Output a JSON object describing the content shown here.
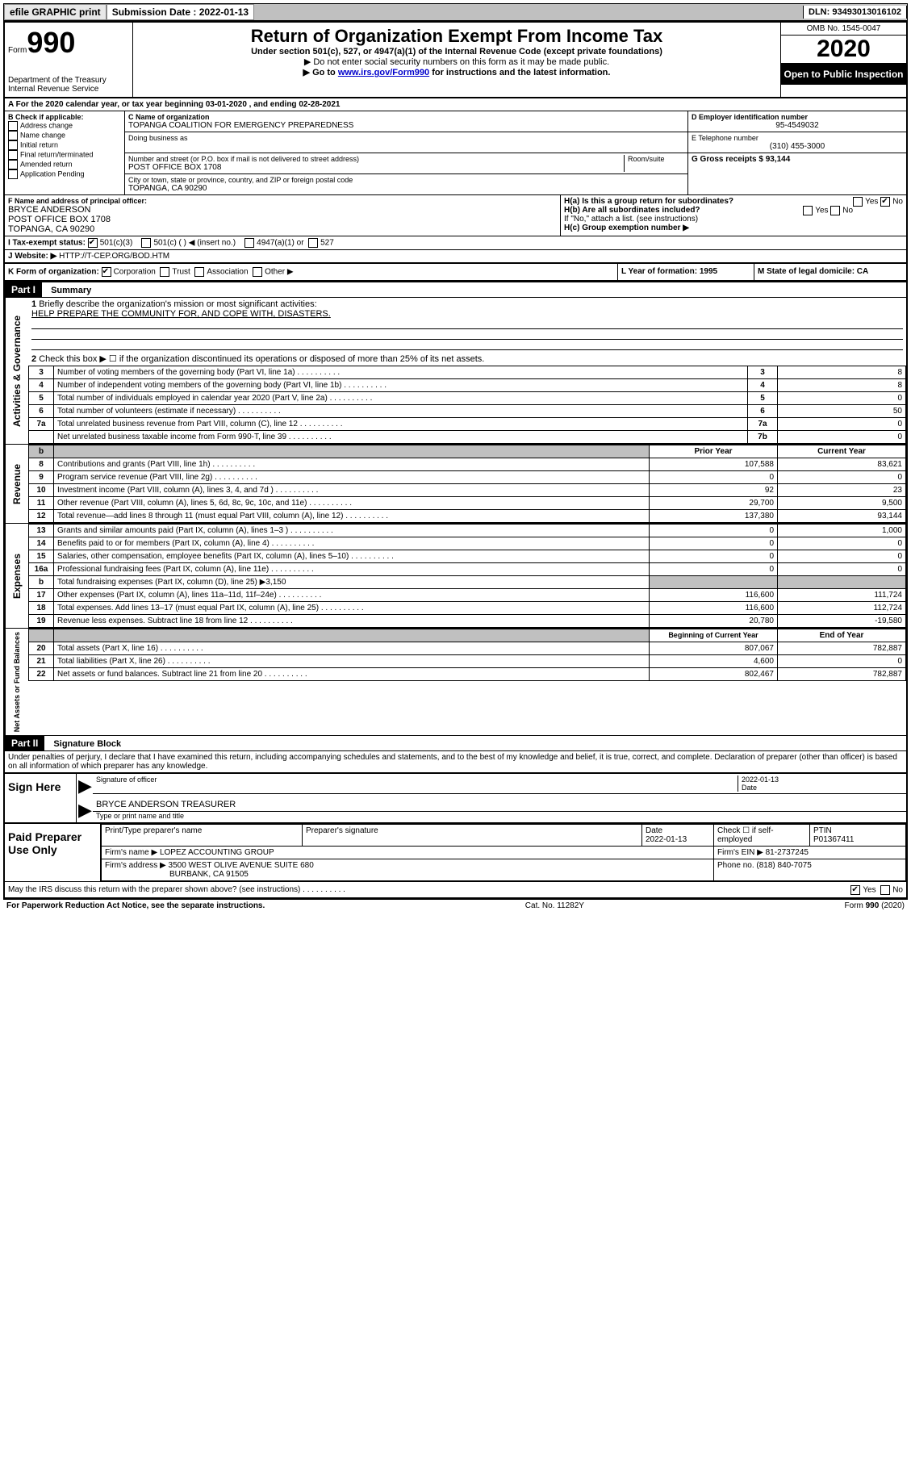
{
  "topbar": {
    "efile": "efile GRAPHIC print",
    "submission_label": "Submission Date : 2022-01-13",
    "dln_label": "DLN: 93493013016102"
  },
  "header": {
    "form_word": "Form",
    "form_number": "990",
    "dept": "Department of the Treasury",
    "irs": "Internal Revenue Service",
    "title": "Return of Organization Exempt From Income Tax",
    "sub1": "Under section 501(c), 527, or 4947(a)(1) of the Internal Revenue Code (except private foundations)",
    "sub2": "▶ Do not enter social security numbers on this form as it may be made public.",
    "sub3_pre": "▶ Go to ",
    "sub3_link": "www.irs.gov/Form990",
    "sub3_post": " for instructions and the latest information.",
    "omb": "OMB No. 1545-0047",
    "year": "2020",
    "open": "Open to Public Inspection"
  },
  "sectionA": "A For the 2020 calendar year, or tax year beginning 03-01-2020    , and ending 02-28-2021",
  "boxB": {
    "title": "B Check if applicable:",
    "opts": [
      "Address change",
      "Name change",
      "Initial return",
      "Final return/terminated",
      "Amended return",
      "Application Pending"
    ]
  },
  "boxC": {
    "label": "C Name of organization",
    "name": "TOPANGA COALITION FOR EMERGENCY PREPAREDNESS",
    "dba": "Doing business as",
    "street_label": "Number and street (or P.O. box if mail is not delivered to street address)",
    "room": "Room/suite",
    "street": "POST OFFICE BOX 1708",
    "city_label": "City or town, state or province, country, and ZIP or foreign postal code",
    "city": "TOPANGA, CA  90290"
  },
  "boxD": {
    "label": "D Employer identification number",
    "val": "95-4549032"
  },
  "boxE": {
    "label": "E Telephone number",
    "val": "(310) 455-3000"
  },
  "boxG": {
    "label": "G Gross receipts $ 93,144"
  },
  "boxF": {
    "label": "F  Name and address of principal officer:",
    "l1": "BRYCE ANDERSON",
    "l2": "POST OFFICE BOX 1708",
    "l3": "TOPANGA, CA  90290"
  },
  "boxH": {
    "a": "H(a)  Is this a group return for subordinates?",
    "b": "H(b)  Are all subordinates included?",
    "note": "If \"No,\" attach a list. (see instructions)",
    "c": "H(c)  Group exemption number ▶",
    "yes": "Yes",
    "no": "No"
  },
  "boxI": {
    "label": "I     Tax-exempt status:",
    "o1": "501(c)(3)",
    "o2": "501(c) (   ) ◀ (insert no.)",
    "o3": "4947(a)(1) or",
    "o4": "527"
  },
  "boxJ": {
    "label": "J     Website: ▶",
    "val": "  HTTP://T-CEP.ORG/BOD.HTM"
  },
  "boxK": {
    "label": "K Form of organization:",
    "o1": "Corporation",
    "o2": "Trust",
    "o3": "Association",
    "o4": "Other ▶"
  },
  "boxL": {
    "label": "L Year of formation: 1995"
  },
  "boxM": {
    "label": "M State of legal domicile: CA"
  },
  "part1": {
    "bar": "Part I",
    "title": "Summary"
  },
  "summary": {
    "q1": "Briefly describe the organization's mission or most significant activities:",
    "q1v": "HELP PREPARE THE COMMUNITY FOR, AND COPE WITH, DISASTERS.",
    "q2": "Check this box ▶ ☐  if the organization discontinued its operations or disposed of more than 25% of its net assets.",
    "rows_top": [
      {
        "n": "3",
        "t": "Number of voting members of the governing body (Part VI, line 1a)",
        "b": "3",
        "v": "8"
      },
      {
        "n": "4",
        "t": "Number of independent voting members of the governing body (Part VI, line 1b)",
        "b": "4",
        "v": "8"
      },
      {
        "n": "5",
        "t": "Total number of individuals employed in calendar year 2020 (Part V, line 2a)",
        "b": "5",
        "v": "0"
      },
      {
        "n": "6",
        "t": "Total number of volunteers (estimate if necessary)",
        "b": "6",
        "v": "50"
      },
      {
        "n": "7a",
        "t": "Total unrelated business revenue from Part VIII, column (C), line 12",
        "b": "7a",
        "v": "0"
      },
      {
        "n": "",
        "t": "Net unrelated business taxable income from Form 990-T, line 39",
        "b": "7b",
        "v": "0"
      }
    ],
    "col_prior": "Prior Year",
    "col_current": "Current Year",
    "rev": [
      {
        "n": "8",
        "t": "Contributions and grants (Part VIII, line 1h)",
        "p": "107,588",
        "c": "83,621"
      },
      {
        "n": "9",
        "t": "Program service revenue (Part VIII, line 2g)",
        "p": "0",
        "c": "0"
      },
      {
        "n": "10",
        "t": "Investment income (Part VIII, column (A), lines 3, 4, and 7d )",
        "p": "92",
        "c": "23"
      },
      {
        "n": "11",
        "t": "Other revenue (Part VIII, column (A), lines 5, 6d, 8c, 9c, 10c, and 11e)",
        "p": "29,700",
        "c": "9,500"
      },
      {
        "n": "12",
        "t": "Total revenue—add lines 8 through 11 (must equal Part VIII, column (A), line 12)",
        "p": "137,380",
        "c": "93,144"
      }
    ],
    "exp": [
      {
        "n": "13",
        "t": "Grants and similar amounts paid (Part IX, column (A), lines 1–3 )",
        "p": "0",
        "c": "1,000"
      },
      {
        "n": "14",
        "t": "Benefits paid to or for members (Part IX, column (A), line 4)",
        "p": "0",
        "c": "0"
      },
      {
        "n": "15",
        "t": "Salaries, other compensation, employee benefits (Part IX, column (A), lines 5–10)",
        "p": "0",
        "c": "0"
      },
      {
        "n": "16a",
        "t": "Professional fundraising fees (Part IX, column (A), line 11e)",
        "p": "0",
        "c": "0"
      },
      {
        "n": "b",
        "t": "Total fundraising expenses (Part IX, column (D), line 25) ▶3,150",
        "p": "",
        "c": ""
      },
      {
        "n": "17",
        "t": "Other expenses (Part IX, column (A), lines 11a–11d, 11f–24e)",
        "p": "116,600",
        "c": "111,724"
      },
      {
        "n": "18",
        "t": "Total expenses. Add lines 13–17 (must equal Part IX, column (A), line 25)",
        "p": "116,600",
        "c": "112,724"
      },
      {
        "n": "19",
        "t": "Revenue less expenses. Subtract line 18 from line 12",
        "p": "20,780",
        "c": "-19,580"
      }
    ],
    "col_begin": "Beginning of Current Year",
    "col_end": "End of Year",
    "net": [
      {
        "n": "20",
        "t": "Total assets (Part X, line 16)",
        "p": "807,067",
        "c": "782,887"
      },
      {
        "n": "21",
        "t": "Total liabilities (Part X, line 26)",
        "p": "4,600",
        "c": "0"
      },
      {
        "n": "22",
        "t": "Net assets or fund balances. Subtract line 21 from line 20",
        "p": "802,467",
        "c": "782,887"
      }
    ],
    "side_labels": {
      "gov": "Activities & Governance",
      "rev": "Revenue",
      "exp": "Expenses",
      "net": "Net Assets or Fund Balances"
    }
  },
  "part2": {
    "bar": "Part II",
    "title": "Signature Block"
  },
  "sig": {
    "perjury": "Under penalties of perjury, I declare that I have examined this return, including accompanying schedules and statements, and to the best of my knowledge and belief, it is true, correct, and complete. Declaration of preparer (other than officer) is based on all information of which preparer has any knowledge.",
    "sign_here": "Sign Here",
    "sig_officer": "Signature of officer",
    "date_label": "Date",
    "sig_date": "2022-01-13",
    "name_title": "BRYCE ANDERSON  TREASURER",
    "type_name": "Type or print name and title",
    "paid": "Paid Preparer Use Only",
    "col_prep_name": "Print/Type preparer's name",
    "col_prep_sig": "Preparer's signature",
    "col_date": "Date",
    "prep_date": "2022-01-13",
    "check_self": "Check ☐ if self-employed",
    "ptin_label": "PTIN",
    "ptin": "P01367411",
    "firm_name_label": "Firm's name     ▶",
    "firm_name": "LOPEZ ACCOUNTING GROUP",
    "firm_ein_label": "Firm's EIN ▶",
    "firm_ein": "81-2737245",
    "firm_addr_label": "Firm's address ▶",
    "firm_addr1": "3500 WEST OLIVE AVENUE SUITE 680",
    "firm_addr2": "BURBANK, CA  91505",
    "phone_label": "Phone no.",
    "phone": "(818) 840-7075",
    "discuss": "May the IRS discuss this return with the preparer shown above? (see instructions)",
    "yes": "Yes",
    "no": "No"
  },
  "footer": {
    "left": "For Paperwork Reduction Act Notice, see the separate instructions.",
    "mid": "Cat. No. 11282Y",
    "right": "Form 990 (2020)"
  }
}
